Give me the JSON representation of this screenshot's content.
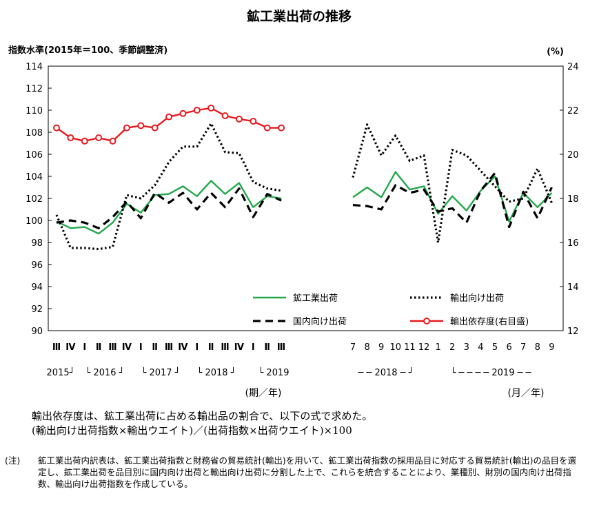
{
  "chart_data": {
    "type": "line",
    "title": "鉱工業出荷の推移",
    "left_axis_label": "指数水準(2015年＝100、季節調整済)",
    "right_axis_label": "(%)",
    "ylim_left": [
      90,
      114
    ],
    "yticks_left": [
      90,
      92,
      94,
      96,
      98,
      100,
      102,
      104,
      106,
      108,
      110,
      112,
      114
    ],
    "ylim_right": [
      12,
      24
    ],
    "yticks_right": [
      12,
      14,
      16,
      18,
      20,
      22,
      24
    ],
    "quarterly": {
      "x_tick_labels": [
        "Ⅲ",
        "Ⅳ",
        "Ⅰ",
        "Ⅱ",
        "Ⅲ",
        "Ⅳ",
        "Ⅰ",
        "Ⅱ",
        "Ⅲ",
        "Ⅳ",
        "Ⅰ",
        "Ⅱ",
        "Ⅲ",
        "Ⅳ",
        "Ⅰ",
        "Ⅱ",
        "Ⅲ"
      ],
      "year_labels": [
        "2015",
        "2016",
        "2017",
        "2018",
        "2019"
      ],
      "year_label_row": [
        "2015┘",
        "└ 2016 ┘",
        "└ 2017 ┘",
        "└ 2018 ┘",
        "└ 2019"
      ],
      "axis_unit_label": "(期／年)"
    },
    "monthly": {
      "x_tick_labels": [
        "7",
        "8",
        "9",
        "10",
        "11",
        "12",
        "1",
        "2",
        "3",
        "4",
        "5",
        "6",
        "7",
        "8",
        "9"
      ],
      "year_label_row": [
        "─ ─ 2018 ─ ┘",
        "└ ─ ─ ─ ─ 2019 ─ ─"
      ],
      "axis_unit_label": "(月／年)"
    },
    "series": [
      {
        "name": "鉱工業出荷",
        "axis": "left",
        "color": "#22a84a",
        "style": "solid",
        "quarterly": [
          99.9,
          99.3,
          99.4,
          98.8,
          99.8,
          101.5,
          100.7,
          102.3,
          102.4,
          103.1,
          102.2,
          103.6,
          102.4,
          103.4,
          101.2,
          102.2,
          102.0
        ],
        "monthly": [
          102.1,
          103.0,
          102.1,
          104.4,
          102.8,
          103.1,
          100.6,
          102.2,
          100.9,
          102.7,
          104.0,
          99.9,
          102.5,
          101.2,
          102.5
        ]
      },
      {
        "name": "輸出向け出荷",
        "axis": "left",
        "color": "#000000",
        "style": "dotted",
        "quarterly": [
          100.5,
          97.5,
          97.5,
          97.4,
          97.6,
          102.3,
          102.0,
          103.2,
          105.3,
          106.7,
          106.7,
          108.8,
          106.2,
          106.1,
          103.5,
          102.9,
          102.7
        ],
        "monthly": [
          103.9,
          108.7,
          105.9,
          107.7,
          105.4,
          105.9,
          98.0,
          106.4,
          105.9,
          104.5,
          103.1,
          101.7,
          102.0,
          104.7,
          101.6
        ]
      },
      {
        "name": "国内向け出荷",
        "axis": "left",
        "color": "#000000",
        "style": "dashed",
        "quarterly": [
          99.8,
          100.0,
          99.8,
          99.3,
          100.3,
          101.7,
          100.2,
          102.5,
          101.6,
          102.5,
          101.0,
          102.5,
          101.2,
          102.9,
          100.3,
          102.4,
          101.8
        ],
        "monthly": [
          101.4,
          101.3,
          101.0,
          103.2,
          102.5,
          102.8,
          100.8,
          101.1,
          99.8,
          102.7,
          104.3,
          99.4,
          102.6,
          100.2,
          103.0
        ]
      },
      {
        "name": "輸出依存度(右目盛)",
        "axis": "right",
        "color": "#e8191e",
        "style": "solid-markers",
        "quarterly": [
          21.2,
          20.75,
          20.6,
          20.75,
          20.6,
          21.2,
          21.3,
          21.2,
          21.7,
          21.85,
          22.0,
          22.1,
          21.75,
          21.6,
          21.5,
          21.2,
          21.2
        ],
        "monthly": []
      }
    ]
  },
  "notes": {
    "line1": "輸出依存度は、鉱工業出荷に占める輸出品の割合で、以下の式で求めた。",
    "line2": "(輸出向け出荷指数×輸出ウエイト)／(出荷指数×出荷ウエイト)×100",
    "footnote_label": "(注)",
    "footnote_text": "鉱工業出荷内訳表は、鉱工業出荷指数と財務省の貿易統計(輸出)を用いて、鉱工業出荷指数の採用品目に対応する貿易統計(輸出)の品目を選定し、鉱工業出荷を品目別に国内向け出荷と輸出向け出荷に分割した上で、これらを統合することにより、業種別、財別の国内向け出荷指数、輸出向け出荷指数を作成している。"
  }
}
